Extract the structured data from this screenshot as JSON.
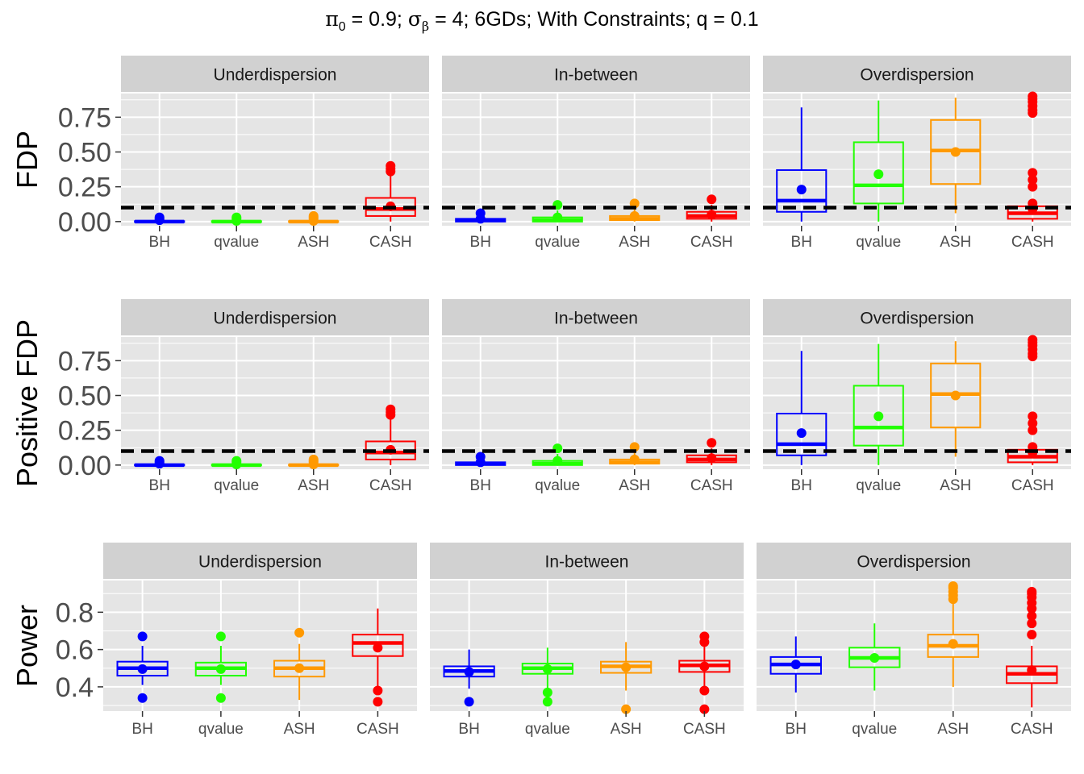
{
  "figure": {
    "title_parts": {
      "pi": "π",
      "pi_sub": "0",
      "pi_val": " = 0.9; ",
      "sigma": "σ",
      "sigma_sub": "β",
      "rest": " = 4; 6GDs; With Constraints; q = 0.1"
    }
  },
  "colors": {
    "BH": "#0000ff",
    "qvalue": "#22ff00",
    "ASH": "#ff9900",
    "CASH": "#ff0000",
    "panel_bg": "#e5e5e5",
    "strip_bg": "#d1d1d1",
    "grid": "#ffffff",
    "ref_line": "#000000"
  },
  "chart_data": [
    {
      "type": "boxplot",
      "ylabel": "FDP",
      "ylim": [
        -0.03,
        0.92
      ],
      "yticks": [
        0.0,
        0.25,
        0.5,
        0.75
      ],
      "ytick_labels": [
        "0.00",
        "0.25",
        "0.50",
        "0.75"
      ],
      "reference_line": 0.1,
      "categories": [
        "BH",
        "qvalue",
        "ASH",
        "CASH"
      ],
      "facets": [
        {
          "label": "Underdispersion",
          "boxes": [
            {
              "method": "BH",
              "min": 0.0,
              "q1": 0.0,
              "median": 0.0,
              "q3": 0.003,
              "max": 0.003,
              "mean": 0.01,
              "outliers": [
                0.02,
                0.03
              ]
            },
            {
              "method": "qvalue",
              "min": 0.0,
              "q1": 0.0,
              "median": 0.0,
              "q3": 0.003,
              "max": 0.003,
              "mean": 0.005,
              "outliers": [
                0.02,
                0.03
              ]
            },
            {
              "method": "ASH",
              "min": 0.0,
              "q1": 0.0,
              "median": 0.0,
              "q3": 0.003,
              "max": 0.003,
              "mean": 0.005,
              "outliers": [
                0.02,
                0.03,
                0.04
              ]
            },
            {
              "method": "CASH",
              "min": 0.0,
              "q1": 0.04,
              "median": 0.09,
              "q3": 0.17,
              "max": 0.33,
              "mean": 0.11,
              "outliers": [
                0.36,
                0.38,
                0.4
              ]
            }
          ]
        },
        {
          "label": "In-between",
          "boxes": [
            {
              "method": "BH",
              "min": 0.0,
              "q1": 0.0,
              "median": 0.01,
              "q3": 0.02,
              "max": 0.04,
              "mean": 0.02,
              "outliers": [
                0.06
              ]
            },
            {
              "method": "qvalue",
              "min": 0.0,
              "q1": 0.0,
              "median": 0.01,
              "q3": 0.03,
              "max": 0.08,
              "mean": 0.03,
              "outliers": [
                0.12
              ]
            },
            {
              "method": "ASH",
              "min": 0.0,
              "q1": 0.01,
              "median": 0.02,
              "q3": 0.04,
              "max": 0.1,
              "mean": 0.04,
              "outliers": [
                0.13
              ]
            },
            {
              "method": "CASH",
              "min": 0.0,
              "q1": 0.02,
              "median": 0.04,
              "q3": 0.07,
              "max": 0.12,
              "mean": 0.05,
              "outliers": [
                0.16
              ]
            }
          ]
        },
        {
          "label": "Overdispersion",
          "boxes": [
            {
              "method": "BH",
              "min": 0.0,
              "q1": 0.07,
              "median": 0.15,
              "q3": 0.37,
              "max": 0.82,
              "mean": 0.23,
              "outliers": []
            },
            {
              "method": "qvalue",
              "min": 0.0,
              "q1": 0.13,
              "median": 0.26,
              "q3": 0.57,
              "max": 0.87,
              "mean": 0.34,
              "outliers": []
            },
            {
              "method": "ASH",
              "min": 0.06,
              "q1": 0.27,
              "median": 0.51,
              "q3": 0.73,
              "max": 0.89,
              "mean": 0.5,
              "outliers": []
            },
            {
              "method": "CASH",
              "min": 0.0,
              "q1": 0.02,
              "median": 0.06,
              "q3": 0.11,
              "max": 0.12,
              "mean": 0.09,
              "outliers": [
                0.13,
                0.25,
                0.3,
                0.35,
                0.78,
                0.8,
                0.83,
                0.86,
                0.88,
                0.9
              ]
            }
          ]
        }
      ]
    },
    {
      "type": "boxplot",
      "ylabel": "Positive FDP",
      "ylim": [
        -0.03,
        0.92
      ],
      "yticks": [
        0.0,
        0.25,
        0.5,
        0.75
      ],
      "ytick_labels": [
        "0.00",
        "0.25",
        "0.50",
        "0.75"
      ],
      "reference_line": 0.1,
      "categories": [
        "BH",
        "qvalue",
        "ASH",
        "CASH"
      ],
      "facets": [
        {
          "label": "Underdispersion",
          "boxes": [
            {
              "method": "BH",
              "min": 0.0,
              "q1": 0.0,
              "median": 0.0,
              "q3": 0.003,
              "max": 0.003,
              "mean": 0.01,
              "outliers": [
                0.02,
                0.03
              ]
            },
            {
              "method": "qvalue",
              "min": 0.0,
              "q1": 0.0,
              "median": 0.0,
              "q3": 0.003,
              "max": 0.003,
              "mean": 0.005,
              "outliers": [
                0.02,
                0.03
              ]
            },
            {
              "method": "ASH",
              "min": 0.0,
              "q1": 0.0,
              "median": 0.0,
              "q3": 0.003,
              "max": 0.003,
              "mean": 0.005,
              "outliers": [
                0.02,
                0.03,
                0.04
              ]
            },
            {
              "method": "CASH",
              "min": 0.0,
              "q1": 0.04,
              "median": 0.09,
              "q3": 0.17,
              "max": 0.33,
              "mean": 0.11,
              "outliers": [
                0.36,
                0.38,
                0.4
              ]
            }
          ]
        },
        {
          "label": "In-between",
          "boxes": [
            {
              "method": "BH",
              "min": 0.0,
              "q1": 0.0,
              "median": 0.01,
              "q3": 0.02,
              "max": 0.04,
              "mean": 0.02,
              "outliers": [
                0.06
              ]
            },
            {
              "method": "qvalue",
              "min": 0.0,
              "q1": 0.0,
              "median": 0.01,
              "q3": 0.03,
              "max": 0.08,
              "mean": 0.03,
              "outliers": [
                0.12
              ]
            },
            {
              "method": "ASH",
              "min": 0.0,
              "q1": 0.01,
              "median": 0.02,
              "q3": 0.04,
              "max": 0.1,
              "mean": 0.04,
              "outliers": [
                0.13
              ]
            },
            {
              "method": "CASH",
              "min": 0.0,
              "q1": 0.02,
              "median": 0.04,
              "q3": 0.07,
              "max": 0.12,
              "mean": 0.05,
              "outliers": [
                0.16
              ]
            }
          ]
        },
        {
          "label": "Overdispersion",
          "boxes": [
            {
              "method": "BH",
              "min": 0.0,
              "q1": 0.07,
              "median": 0.15,
              "q3": 0.37,
              "max": 0.82,
              "mean": 0.23,
              "outliers": []
            },
            {
              "method": "qvalue",
              "min": 0.0,
              "q1": 0.14,
              "median": 0.27,
              "q3": 0.57,
              "max": 0.87,
              "mean": 0.35,
              "outliers": []
            },
            {
              "method": "ASH",
              "min": 0.06,
              "q1": 0.27,
              "median": 0.51,
              "q3": 0.73,
              "max": 0.89,
              "mean": 0.5,
              "outliers": []
            },
            {
              "method": "CASH",
              "min": 0.0,
              "q1": 0.02,
              "median": 0.06,
              "q3": 0.11,
              "max": 0.12,
              "mean": 0.09,
              "outliers": [
                0.13,
                0.25,
                0.3,
                0.35,
                0.78,
                0.8,
                0.83,
                0.86,
                0.88,
                0.9
              ]
            }
          ]
        }
      ]
    },
    {
      "type": "boxplot",
      "ylabel": "Power",
      "ylim": [
        0.27,
        0.97
      ],
      "yticks": [
        0.4,
        0.6,
        0.8
      ],
      "ytick_labels": [
        "0.4",
        "0.6",
        "0.8"
      ],
      "reference_line": null,
      "categories": [
        "BH",
        "qvalue",
        "ASH",
        "CASH"
      ],
      "facets": [
        {
          "label": "Underdispersion",
          "boxes": [
            {
              "method": "BH",
              "min": 0.41,
              "q1": 0.46,
              "median": 0.5,
              "q3": 0.535,
              "max": 0.62,
              "mean": 0.495,
              "outliers": [
                0.34,
                0.67
              ]
            },
            {
              "method": "qvalue",
              "min": 0.41,
              "q1": 0.46,
              "median": 0.5,
              "q3": 0.53,
              "max": 0.62,
              "mean": 0.495,
              "outliers": [
                0.34,
                0.67
              ]
            },
            {
              "method": "ASH",
              "min": 0.33,
              "q1": 0.455,
              "median": 0.5,
              "q3": 0.54,
              "max": 0.63,
              "mean": 0.5,
              "outliers": [
                0.69
              ]
            },
            {
              "method": "CASH",
              "min": 0.4,
              "q1": 0.565,
              "median": 0.635,
              "q3": 0.68,
              "max": 0.82,
              "mean": 0.61,
              "outliers": [
                0.32,
                0.38
              ]
            }
          ]
        },
        {
          "label": "In-between",
          "boxes": [
            {
              "method": "BH",
              "min": 0.39,
              "q1": 0.455,
              "median": 0.485,
              "q3": 0.51,
              "max": 0.6,
              "mean": 0.48,
              "outliers": [
                0.32
              ]
            },
            {
              "method": "qvalue",
              "min": 0.39,
              "q1": 0.47,
              "median": 0.5,
              "q3": 0.525,
              "max": 0.61,
              "mean": 0.495,
              "outliers": [
                0.32,
                0.37
              ]
            },
            {
              "method": "ASH",
              "min": 0.38,
              "q1": 0.475,
              "median": 0.51,
              "q3": 0.535,
              "max": 0.64,
              "mean": 0.505,
              "outliers": [
                0.28
              ]
            },
            {
              "method": "CASH",
              "min": 0.4,
              "q1": 0.48,
              "median": 0.515,
              "q3": 0.54,
              "max": 0.62,
              "mean": 0.51,
              "outliers": [
                0.28,
                0.38,
                0.64,
                0.67
              ]
            }
          ]
        },
        {
          "label": "Overdispersion",
          "boxes": [
            {
              "method": "BH",
              "min": 0.37,
              "q1": 0.47,
              "median": 0.52,
              "q3": 0.56,
              "max": 0.67,
              "mean": 0.52,
              "outliers": []
            },
            {
              "method": "qvalue",
              "min": 0.38,
              "q1": 0.505,
              "median": 0.555,
              "q3": 0.61,
              "max": 0.74,
              "mean": 0.555,
              "outliers": []
            },
            {
              "method": "ASH",
              "min": 0.4,
              "q1": 0.56,
              "median": 0.62,
              "q3": 0.68,
              "max": 0.86,
              "mean": 0.63,
              "outliers": [
                0.87,
                0.89,
                0.91,
                0.93,
                0.94
              ]
            },
            {
              "method": "CASH",
              "min": 0.29,
              "q1": 0.42,
              "median": 0.47,
              "q3": 0.51,
              "max": 0.62,
              "mean": 0.49,
              "outliers": [
                0.68,
                0.74,
                0.78,
                0.82,
                0.85,
                0.88,
                0.9,
                0.91
              ]
            }
          ]
        }
      ]
    }
  ]
}
